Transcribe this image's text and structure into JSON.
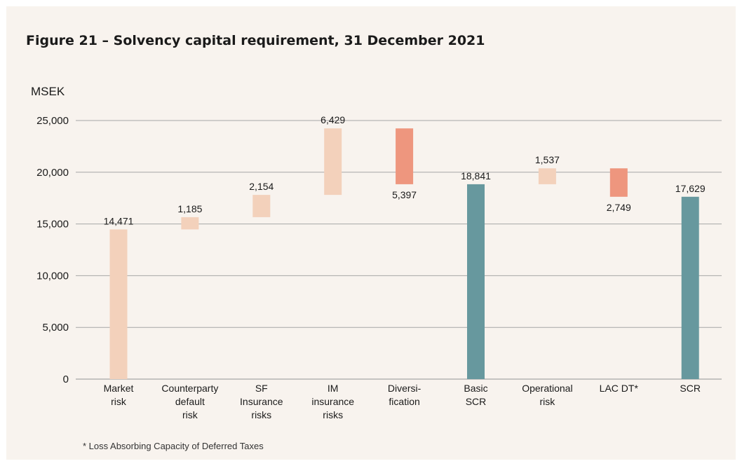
{
  "title": "Figure 21 – Solvency capital requirement, 31 December 2021",
  "unit_label": "MSEK",
  "footnote": "* Loss Absorbing Capacity of Deferred Taxes",
  "colors": {
    "background": "#f8f3ee",
    "increase": "#f3d1bb",
    "decrease": "#ee967e",
    "total": "#67989e",
    "grid": "#a6a6a6",
    "text": "#1a1a1a"
  },
  "chart_data": {
    "type": "bar",
    "subtype": "waterfall",
    "title": "Figure 21 – Solvency capital requirement, 31 December 2021",
    "ylabel": "MSEK",
    "ylim": [
      0,
      25000
    ],
    "yticks": [
      0,
      5000,
      10000,
      15000,
      20000,
      25000
    ],
    "ytick_labels": [
      "0",
      "5,000",
      "10,000",
      "15,000",
      "20,000",
      "25,000"
    ],
    "grid": true,
    "categories": [
      [
        "Market",
        "risk"
      ],
      [
        "Counterparty",
        "default",
        "risk"
      ],
      [
        "SF",
        "Insurance",
        "risks"
      ],
      [
        "IM",
        "insurance",
        "risks"
      ],
      [
        "Diversi-",
        "fication"
      ],
      [
        "Basic",
        "SCR"
      ],
      [
        "Operational",
        "risk"
      ],
      [
        "LAC DT*"
      ],
      [
        "SCR"
      ]
    ],
    "bars": [
      {
        "value": 14471,
        "label": "14,471",
        "kind": "increase",
        "base": 0
      },
      {
        "value": 1185,
        "label": "1,185",
        "kind": "increase",
        "base": 14471
      },
      {
        "value": 2154,
        "label": "2,154",
        "kind": "increase",
        "base": 15656
      },
      {
        "value": 6429,
        "label": "6,429",
        "kind": "increase",
        "base": 17810
      },
      {
        "value": 5397,
        "label": "5,397",
        "kind": "decrease",
        "base": 24239
      },
      {
        "value": 18841,
        "label": "18,841",
        "kind": "total",
        "base": 0
      },
      {
        "value": 1537,
        "label": "1,537",
        "kind": "increase",
        "base": 18841
      },
      {
        "value": 2749,
        "label": "2,749",
        "kind": "decrease",
        "base": 20378
      },
      {
        "value": 17629,
        "label": "17,629",
        "kind": "total",
        "base": 0
      }
    ]
  }
}
